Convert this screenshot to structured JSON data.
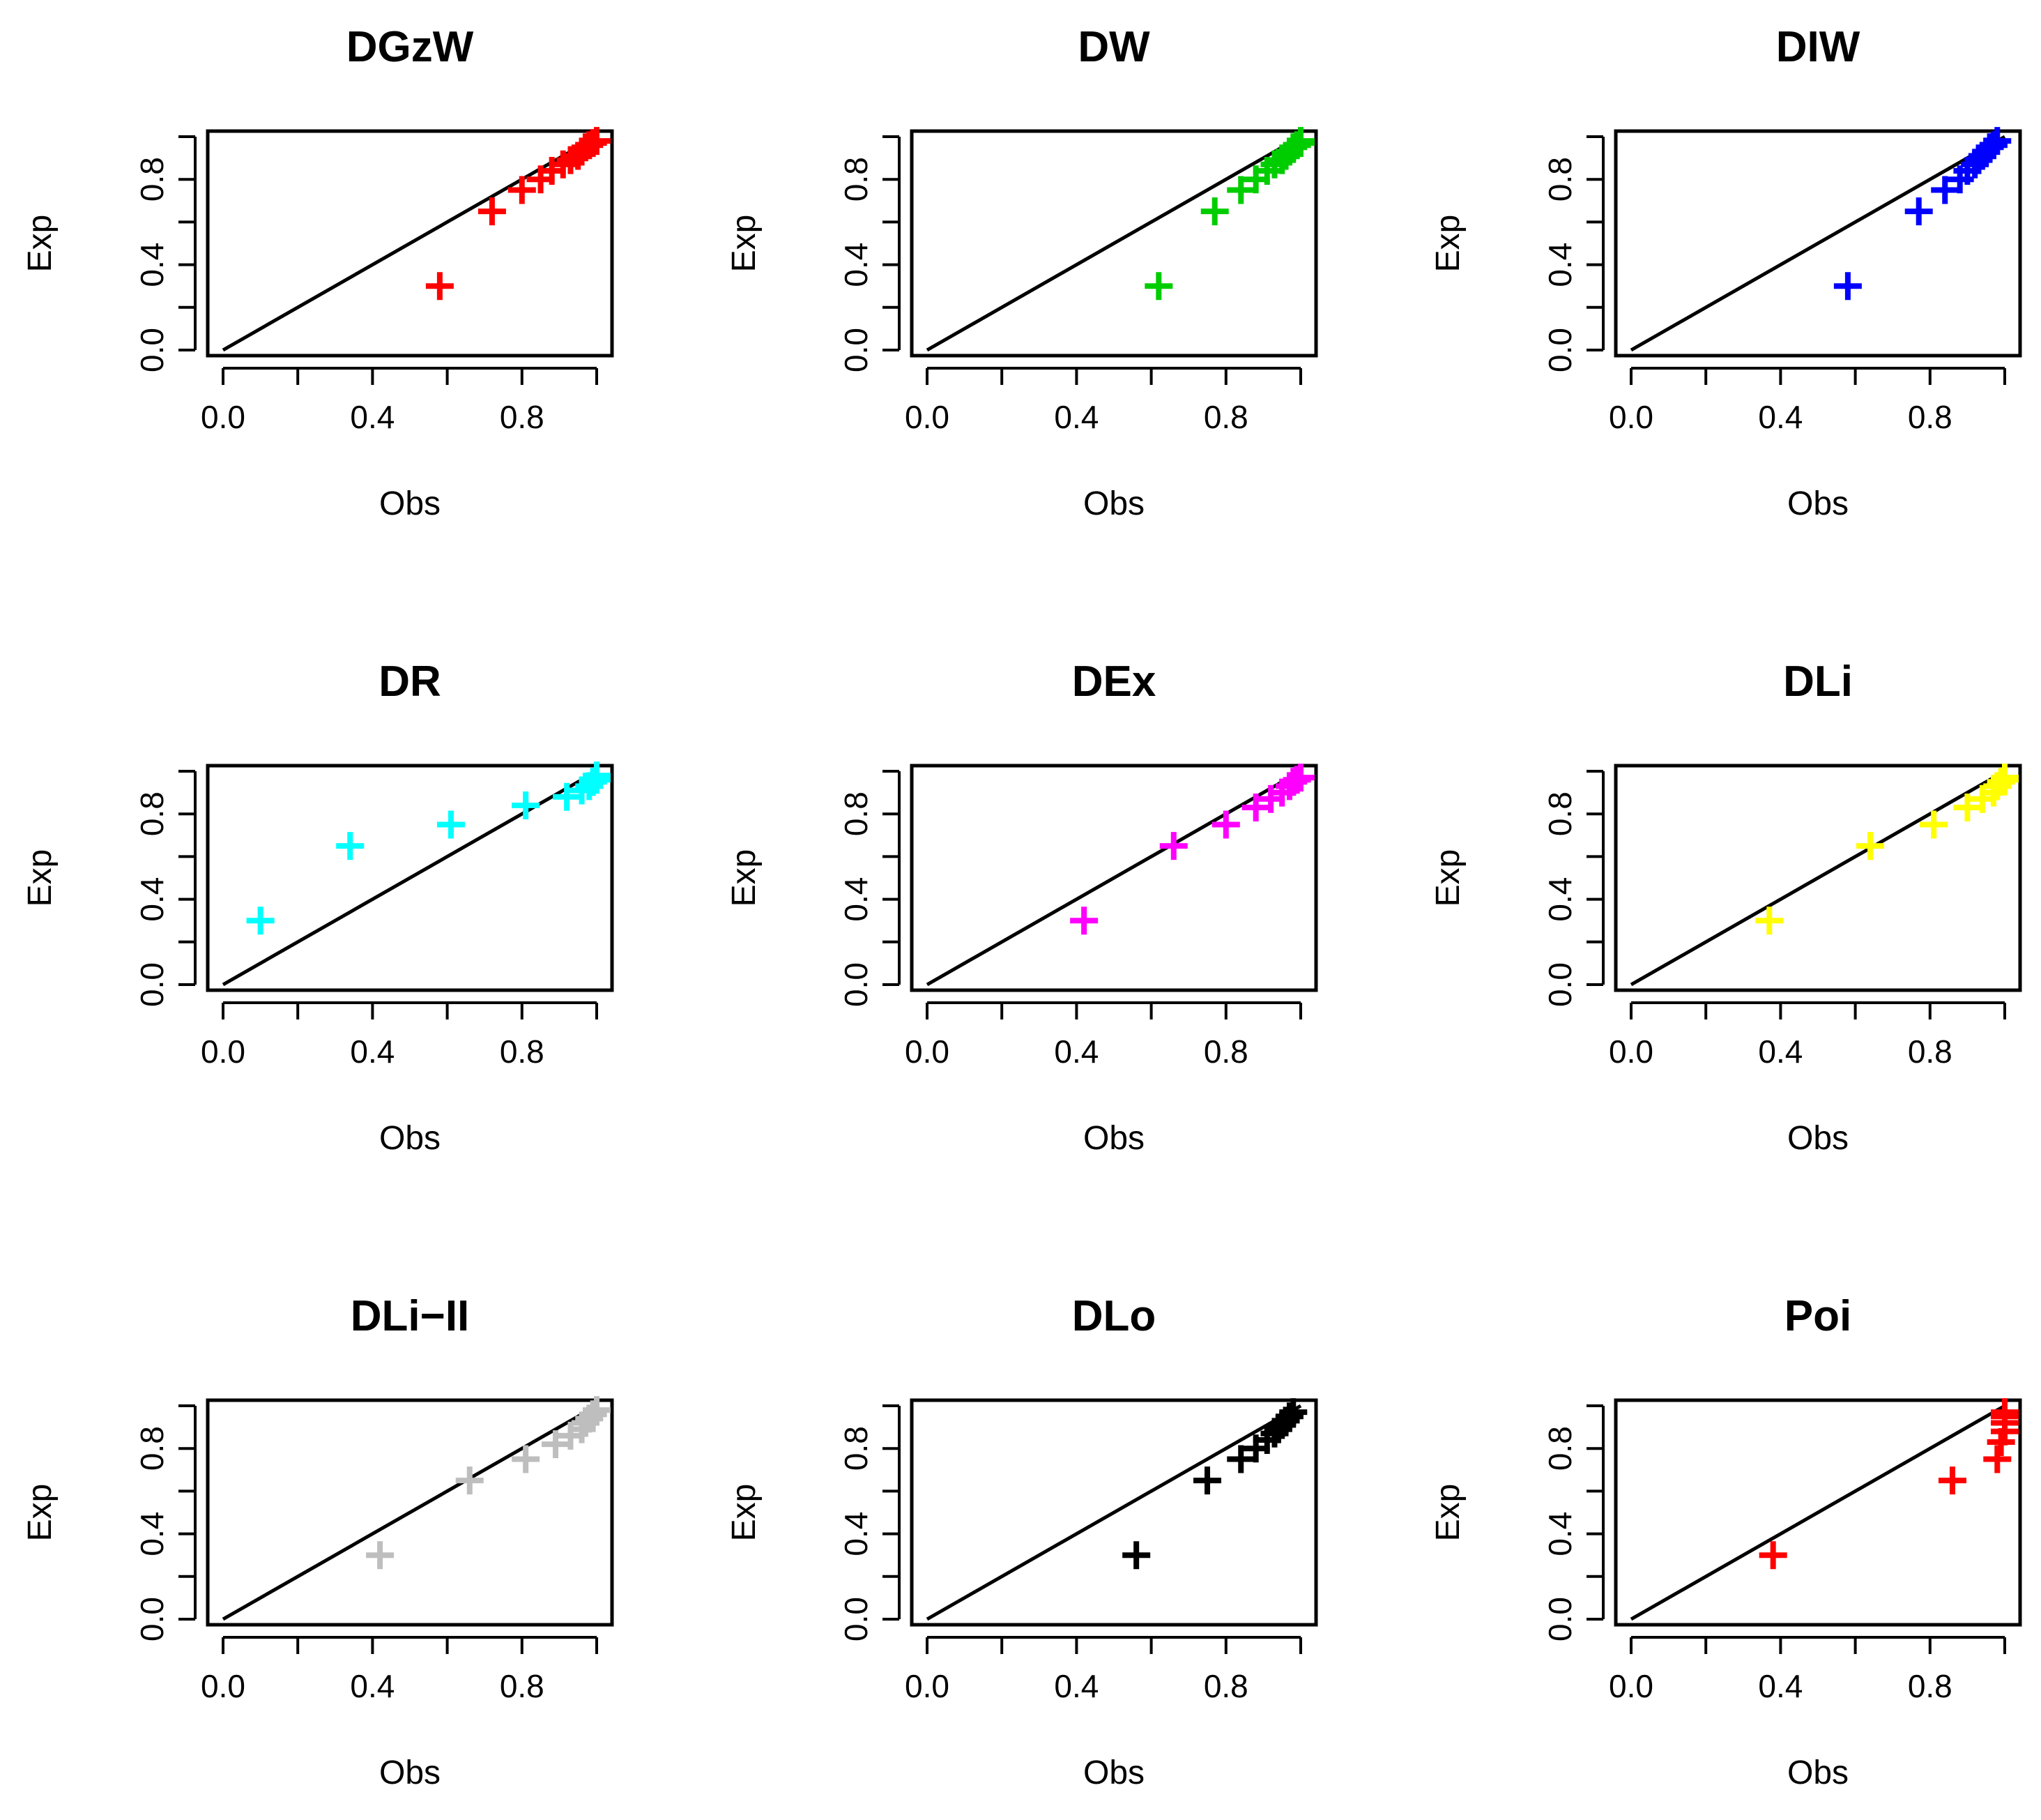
{
  "figure": {
    "description_type": "PP plots (Exp vs Obs) grid 3x3"
  },
  "chart_data": [
    {
      "type": "scatter",
      "title": "DGzW",
      "xlabel": "Obs",
      "ylabel": "Exp",
      "xlim": [
        0,
        1
      ],
      "ylim": [
        0,
        1
      ],
      "color": "#ff0000",
      "xticks": [
        "0.0",
        "0.4",
        "0.8"
      ],
      "yticks": [
        "0.0",
        "0.4",
        "0.8"
      ],
      "reference_line": "y = x",
      "points": [
        [
          0.58,
          0.3
        ],
        [
          0.72,
          0.65
        ],
        [
          0.8,
          0.75
        ],
        [
          0.85,
          0.8
        ],
        [
          0.88,
          0.84
        ],
        [
          0.91,
          0.87
        ],
        [
          0.93,
          0.89
        ],
        [
          0.95,
          0.91
        ],
        [
          0.96,
          0.93
        ],
        [
          0.97,
          0.95
        ],
        [
          0.98,
          0.96
        ],
        [
          0.99,
          0.97
        ],
        [
          1.0,
          0.98
        ]
      ]
    },
    {
      "type": "scatter",
      "title": "DW",
      "xlabel": "Obs",
      "ylabel": "Exp",
      "xlim": [
        0,
        1
      ],
      "ylim": [
        0,
        1
      ],
      "color": "#00cd00",
      "xticks": [
        "0.0",
        "0.4",
        "0.8"
      ],
      "yticks": [
        "0.0",
        "0.4",
        "0.8"
      ],
      "reference_line": "y = x",
      "points": [
        [
          0.62,
          0.3
        ],
        [
          0.77,
          0.65
        ],
        [
          0.84,
          0.75
        ],
        [
          0.88,
          0.8
        ],
        [
          0.91,
          0.84
        ],
        [
          0.93,
          0.87
        ],
        [
          0.95,
          0.89
        ],
        [
          0.96,
          0.91
        ],
        [
          0.97,
          0.93
        ],
        [
          0.98,
          0.95
        ],
        [
          0.99,
          0.96
        ],
        [
          1.0,
          0.97
        ],
        [
          1.0,
          0.98
        ]
      ]
    },
    {
      "type": "scatter",
      "title": "DIW",
      "xlabel": "Obs",
      "ylabel": "Exp",
      "xlim": [
        0,
        1
      ],
      "ylim": [
        0,
        1
      ],
      "color": "#0000ff",
      "xticks": [
        "0.0",
        "0.4",
        "0.8"
      ],
      "yticks": [
        "0.0",
        "0.4",
        "0.8"
      ],
      "reference_line": "y = x",
      "points": [
        [
          0.58,
          0.3
        ],
        [
          0.77,
          0.65
        ],
        [
          0.84,
          0.75
        ],
        [
          0.88,
          0.8
        ],
        [
          0.9,
          0.84
        ],
        [
          0.92,
          0.87
        ],
        [
          0.93,
          0.89
        ],
        [
          0.94,
          0.91
        ],
        [
          0.95,
          0.93
        ],
        [
          0.96,
          0.95
        ],
        [
          0.97,
          0.96
        ],
        [
          0.98,
          0.98
        ]
      ]
    },
    {
      "type": "scatter",
      "title": "DR",
      "xlabel": "Obs",
      "ylabel": "Exp",
      "xlim": [
        0,
        1
      ],
      "ylim": [
        0,
        1
      ],
      "color": "#00ffff",
      "xticks": [
        "0.0",
        "0.4",
        "0.8"
      ],
      "yticks": [
        "0.0",
        "0.4",
        "0.8"
      ],
      "reference_line": "y = x",
      "points": [
        [
          0.1,
          0.3
        ],
        [
          0.34,
          0.65
        ],
        [
          0.61,
          0.75
        ],
        [
          0.81,
          0.84
        ],
        [
          0.92,
          0.88
        ],
        [
          0.96,
          0.91
        ],
        [
          0.98,
          0.93
        ],
        [
          0.99,
          0.95
        ],
        [
          1.0,
          0.96
        ],
        [
          1.0,
          0.98
        ]
      ]
    },
    {
      "type": "scatter",
      "title": "DEx",
      "xlabel": "Obs",
      "ylabel": "Exp",
      "xlim": [
        0,
        1
      ],
      "ylim": [
        0,
        1
      ],
      "color": "#ff00ff",
      "xticks": [
        "0.0",
        "0.4",
        "0.8"
      ],
      "yticks": [
        "0.0",
        "0.4",
        "0.8"
      ],
      "reference_line": "y = x",
      "points": [
        [
          0.42,
          0.3
        ],
        [
          0.66,
          0.65
        ],
        [
          0.8,
          0.75
        ],
        [
          0.88,
          0.83
        ],
        [
          0.92,
          0.87
        ],
        [
          0.95,
          0.9
        ],
        [
          0.97,
          0.93
        ],
        [
          0.98,
          0.95
        ],
        [
          0.99,
          0.96
        ],
        [
          1.0,
          0.97
        ]
      ]
    },
    {
      "type": "scatter",
      "title": "DLi",
      "xlabel": "Obs",
      "ylabel": "Exp",
      "xlim": [
        0,
        1
      ],
      "ylim": [
        0,
        1
      ],
      "color": "#ffff00",
      "xticks": [
        "0.0",
        "0.4",
        "0.8"
      ],
      "yticks": [
        "0.0",
        "0.4",
        "0.8"
      ],
      "reference_line": "y = x",
      "points": [
        [
          0.37,
          0.3
        ],
        [
          0.64,
          0.65
        ],
        [
          0.81,
          0.75
        ],
        [
          0.9,
          0.83
        ],
        [
          0.94,
          0.87
        ],
        [
          0.97,
          0.9
        ],
        [
          0.98,
          0.93
        ],
        [
          0.99,
          0.95
        ],
        [
          1.0,
          0.96
        ],
        [
          1.0,
          0.97
        ]
      ]
    },
    {
      "type": "scatter",
      "title": "DLi−II",
      "xlabel": "Obs",
      "ylabel": "Exp",
      "xlim": [
        0,
        1
      ],
      "ylim": [
        0,
        1
      ],
      "color": "#bebebe",
      "xticks": [
        "0.0",
        "0.4",
        "0.8"
      ],
      "yticks": [
        "0.0",
        "0.4",
        "0.8"
      ],
      "reference_line": "y = x",
      "points": [
        [
          0.42,
          0.3
        ],
        [
          0.66,
          0.65
        ],
        [
          0.81,
          0.75
        ],
        [
          0.89,
          0.82
        ],
        [
          0.93,
          0.86
        ],
        [
          0.96,
          0.89
        ],
        [
          0.97,
          0.92
        ],
        [
          0.98,
          0.94
        ],
        [
          0.99,
          0.96
        ],
        [
          1.0,
          0.98
        ]
      ]
    },
    {
      "type": "scatter",
      "title": "DLo",
      "xlabel": "Obs",
      "ylabel": "Exp",
      "xlim": [
        0,
        1
      ],
      "ylim": [
        0,
        1
      ],
      "color": "#000000",
      "xticks": [
        "0.0",
        "0.4",
        "0.8"
      ],
      "yticks": [
        "0.0",
        "0.4",
        "0.8"
      ],
      "reference_line": "y = x",
      "points": [
        [
          0.56,
          0.3
        ],
        [
          0.75,
          0.65
        ],
        [
          0.84,
          0.75
        ],
        [
          0.88,
          0.8
        ],
        [
          0.91,
          0.84
        ],
        [
          0.93,
          0.87
        ],
        [
          0.94,
          0.89
        ],
        [
          0.95,
          0.91
        ],
        [
          0.96,
          0.93
        ],
        [
          0.97,
          0.95
        ],
        [
          0.98,
          0.97
        ]
      ]
    },
    {
      "type": "scatter",
      "title": "Poi",
      "xlabel": "Obs",
      "ylabel": "Exp",
      "xlim": [
        0,
        1
      ],
      "ylim": [
        0,
        1
      ],
      "color": "#ff0000",
      "xticks": [
        "0.0",
        "0.4",
        "0.8"
      ],
      "yticks": [
        "0.0",
        "0.4",
        "0.8"
      ],
      "reference_line": "y = x",
      "points": [
        [
          0.38,
          0.3
        ],
        [
          0.86,
          0.65
        ],
        [
          0.98,
          0.75
        ],
        [
          0.99,
          0.83
        ],
        [
          1.0,
          0.88
        ],
        [
          1.0,
          0.92
        ],
        [
          1.0,
          0.95
        ],
        [
          1.0,
          0.97
        ]
      ]
    }
  ]
}
